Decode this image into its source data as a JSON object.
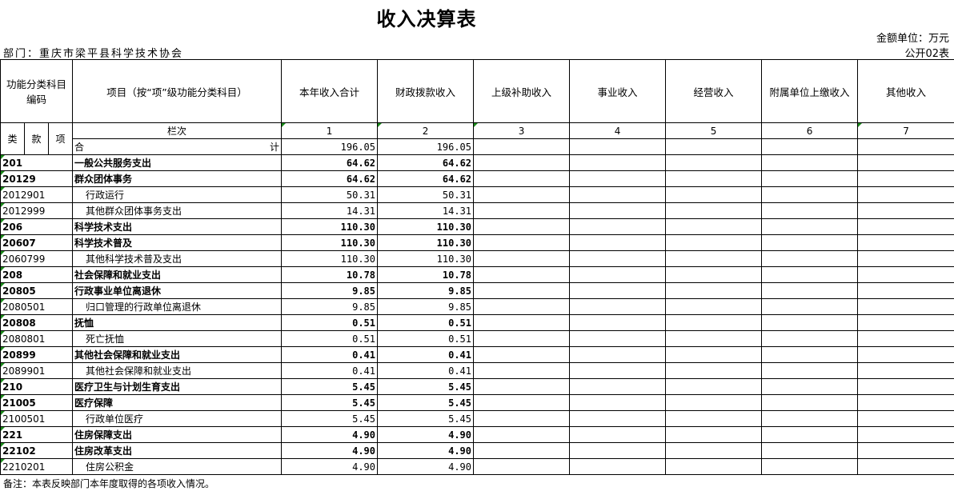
{
  "title": "收入决算表",
  "unit": "金额单位：万元",
  "department": "部门：重庆市梁平县科学技术协会",
  "form_code": "公开02表",
  "headers": {
    "code": "功能分类科目编码",
    "item": "项目（按“项”级功能分类科目）",
    "c1": "本年收入合计",
    "c2": "财政拨款收入",
    "c3": "上级补助收入",
    "c4": "事业收入",
    "c5": "经营收入",
    "c6": "附属单位上缴收入",
    "c7": "其他收入",
    "lei": "类",
    "kuan": "款",
    "xiang": "项",
    "lanci": "栏次",
    "n1": "1",
    "n2": "2",
    "n3": "3",
    "n4": "4",
    "n5": "5",
    "n6": "6",
    "n7": "7"
  },
  "total": {
    "label_a": "合",
    "label_b": "计",
    "total": "196.05",
    "fiscal": "196.05"
  },
  "rows": [
    {
      "code": "201",
      "name": "一般公共服务支出",
      "total": "64.62",
      "fiscal": "64.62",
      "bold": true
    },
    {
      "code": "20129",
      "name": "群众团体事务",
      "total": "64.62",
      "fiscal": "64.62",
      "bold": true
    },
    {
      "code": "2012901",
      "name": "行政运行",
      "total": "50.31",
      "fiscal": "50.31"
    },
    {
      "code": "2012999",
      "name": "其他群众团体事务支出",
      "total": "14.31",
      "fiscal": "14.31"
    },
    {
      "code": "206",
      "name": "科学技术支出",
      "total": "110.30",
      "fiscal": "110.30",
      "bold": true
    },
    {
      "code": "20607",
      "name": "科学技术普及",
      "total": "110.30",
      "fiscal": "110.30",
      "bold": true
    },
    {
      "code": "2060799",
      "name": "其他科学技术普及支出",
      "total": "110.30",
      "fiscal": "110.30"
    },
    {
      "code": "208",
      "name": "社会保障和就业支出",
      "total": "10.78",
      "fiscal": "10.78",
      "bold": true
    },
    {
      "code": "20805",
      "name": "行政事业单位离退休",
      "total": "9.85",
      "fiscal": "9.85",
      "bold": true
    },
    {
      "code": "2080501",
      "name": "归口管理的行政单位离退休",
      "total": "9.85",
      "fiscal": "9.85"
    },
    {
      "code": "20808",
      "name": "抚恤",
      "total": "0.51",
      "fiscal": "0.51",
      "bold": true
    },
    {
      "code": "2080801",
      "name": "死亡抚恤",
      "total": "0.51",
      "fiscal": "0.51"
    },
    {
      "code": "20899",
      "name": "其他社会保障和就业支出",
      "total": "0.41",
      "fiscal": "0.41",
      "bold": true
    },
    {
      "code": "2089901",
      "name": "其他社会保障和就业支出",
      "total": "0.41",
      "fiscal": "0.41"
    },
    {
      "code": "210",
      "name": "医疗卫生与计划生育支出",
      "total": "5.45",
      "fiscal": "5.45",
      "bold": true
    },
    {
      "code": "21005",
      "name": "医疗保障",
      "total": "5.45",
      "fiscal": "5.45",
      "bold": true
    },
    {
      "code": "2100501",
      "name": "行政单位医疗",
      "total": "5.45",
      "fiscal": "5.45"
    },
    {
      "code": "221",
      "name": "住房保障支出",
      "total": "4.90",
      "fiscal": "4.90",
      "bold": true
    },
    {
      "code": "22102",
      "name": "住房改革支出",
      "total": "4.90",
      "fiscal": "4.90",
      "bold": true
    },
    {
      "code": "2210201",
      "name": "住房公积金",
      "total": "4.90",
      "fiscal": "4.90"
    }
  ],
  "note": "备注：本表反映部门本年度取得的各项收入情况。"
}
